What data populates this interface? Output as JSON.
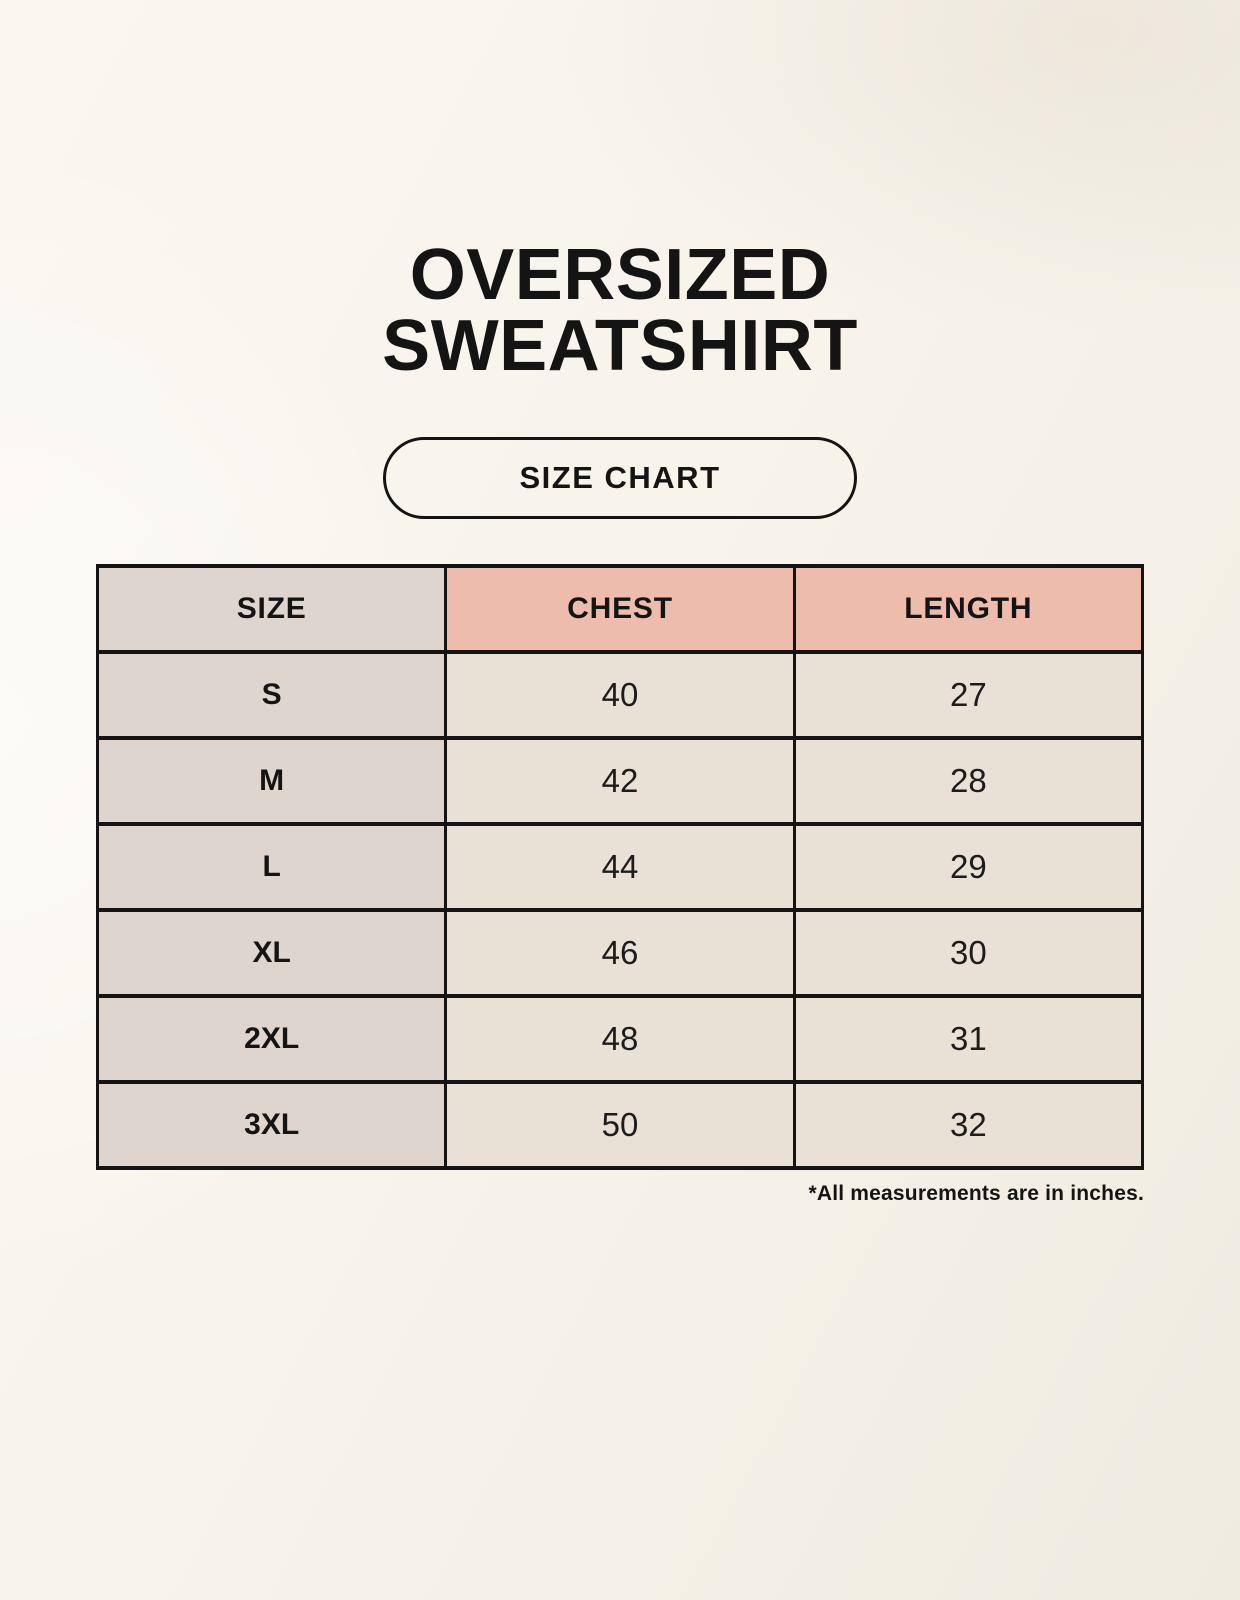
{
  "page": {
    "title_line1": "OVERSIZED",
    "title_line2": "SWEATSHIRT",
    "button_label": "SIZE CHART",
    "footnote": "*All measurements are in inches."
  },
  "colors": {
    "background": "#f8f4ec",
    "size_column_bg": "#ded5cf",
    "header_accent_bg": "#eebcac",
    "value_cell_bg": "#e9e1d5",
    "border": "#141414",
    "text": "#141414"
  },
  "chart_data": {
    "type": "table",
    "title": "Oversized Sweatshirt Size Chart",
    "columns": [
      "SIZE",
      "CHEST",
      "LENGTH"
    ],
    "rows": [
      {
        "size": "S",
        "chest": "40",
        "length": "27"
      },
      {
        "size": "M",
        "chest": "42",
        "length": "28"
      },
      {
        "size": "L",
        "chest": "44",
        "length": "29"
      },
      {
        "size": "XL",
        "chest": "46",
        "length": "30"
      },
      {
        "size": "2XL",
        "chest": "48",
        "length": "31"
      },
      {
        "size": "3XL",
        "chest": "50",
        "length": "32"
      }
    ],
    "units": "inches"
  }
}
